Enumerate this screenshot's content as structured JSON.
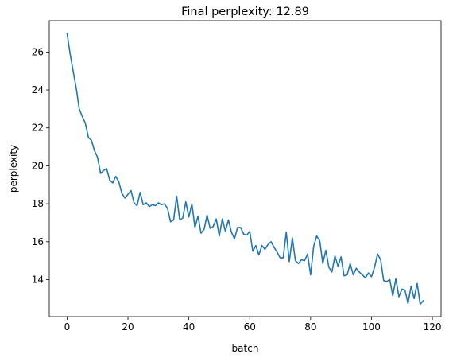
{
  "chart_data": {
    "type": "line",
    "title": "Final perplexity: 12.89",
    "xlabel": "batch",
    "ylabel": "perplexity",
    "xlim": [
      -5.85,
      122.85
    ],
    "ylim": [
      12.05,
      27.65
    ],
    "x_ticks": [
      0,
      20,
      40,
      60,
      80,
      100,
      120
    ],
    "y_ticks": [
      14,
      16,
      18,
      20,
      22,
      24,
      26
    ],
    "grid": false,
    "series_color": "#1f77b4",
    "series": [
      {
        "x": [
          0,
          1,
          2,
          3,
          4,
          5,
          6,
          7,
          8,
          9,
          10,
          11,
          12,
          13,
          14,
          15,
          16,
          17,
          18,
          19,
          20,
          21,
          22,
          23,
          24,
          25,
          26,
          27,
          28,
          29,
          30,
          31,
          32,
          33,
          34,
          35,
          36,
          37,
          38,
          39,
          40,
          41,
          42,
          43,
          44,
          45,
          46,
          47,
          48,
          49,
          50,
          51,
          52,
          53,
          54,
          55,
          56,
          57,
          58,
          59,
          60,
          61,
          62,
          63,
          64,
          65,
          66,
          67,
          68,
          69,
          70,
          71,
          72,
          73,
          74,
          75,
          76,
          77,
          78,
          79,
          80,
          81,
          82,
          83,
          84,
          85,
          86,
          87,
          88,
          89,
          90,
          91,
          92,
          93,
          94,
          95,
          96,
          97,
          98,
          99,
          100,
          101,
          102,
          103,
          104,
          105,
          106,
          107,
          108,
          109,
          110,
          111,
          112,
          113,
          114,
          115,
          116,
          117
        ],
        "values": [
          26.98,
          25.9,
          24.98,
          24.1,
          23.0,
          22.6,
          22.25,
          21.5,
          21.35,
          20.8,
          20.45,
          19.6,
          19.75,
          19.85,
          19.25,
          19.1,
          19.45,
          19.15,
          18.55,
          18.3,
          18.5,
          18.7,
          18.05,
          17.9,
          18.6,
          17.95,
          18.05,
          17.85,
          17.95,
          17.9,
          18.05,
          17.95,
          18.0,
          17.75,
          17.05,
          17.15,
          18.4,
          17.15,
          17.25,
          18.1,
          17.3,
          18.0,
          16.75,
          17.35,
          16.45,
          16.65,
          17.4,
          16.7,
          16.8,
          17.2,
          16.3,
          17.2,
          16.55,
          17.15,
          16.5,
          16.15,
          16.75,
          16.75,
          16.4,
          16.35,
          16.55,
          15.5,
          15.8,
          15.3,
          15.8,
          15.6,
          15.85,
          16.0,
          15.7,
          15.45,
          15.15,
          15.15,
          16.5,
          14.95,
          16.2,
          15.0,
          14.85,
          15.05,
          15.0,
          15.35,
          14.25,
          15.75,
          16.3,
          16.05,
          14.85,
          15.55,
          14.65,
          14.4,
          15.25,
          14.7,
          15.2,
          14.2,
          14.25,
          14.85,
          14.25,
          14.6,
          14.4,
          14.25,
          14.1,
          14.35,
          14.15,
          14.65,
          15.35,
          15.05,
          13.95,
          13.9,
          14.0,
          13.15,
          14.05,
          13.1,
          13.5,
          13.45,
          12.75,
          13.65,
          13.0,
          13.8,
          12.7,
          12.89
        ]
      }
    ]
  }
}
